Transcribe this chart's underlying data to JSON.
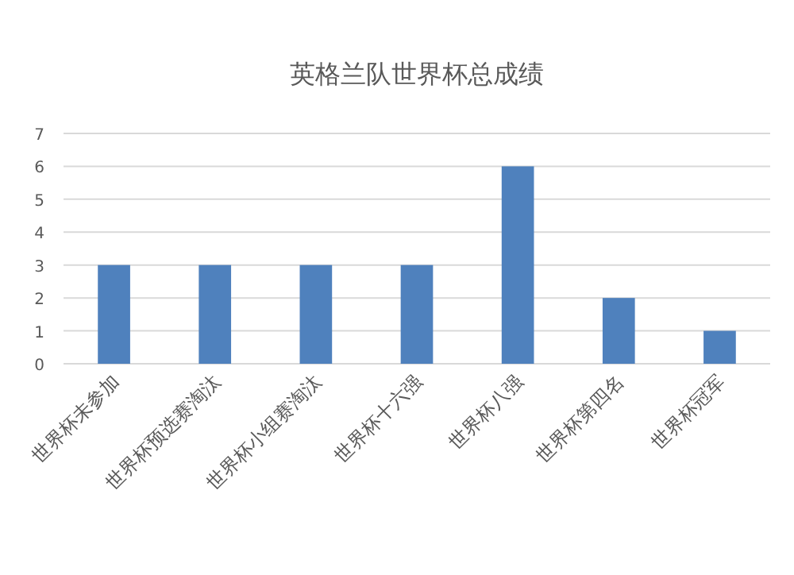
{
  "chart_data": {
    "type": "bar",
    "title": "英格兰队世界杯总成绩",
    "categories": [
      "世界杯未参加",
      "世界杯预选赛淘汰",
      "世界杯小组赛淘汰",
      "世界杯十六强",
      "世界杯八强",
      "世界杯第四名",
      "世界杯冠军"
    ],
    "values": [
      3,
      3,
      3,
      3,
      6,
      2,
      1
    ],
    "color": "#4f81bd",
    "ylim": [
      0,
      7
    ],
    "yticks": [
      0,
      1,
      2,
      3,
      4,
      5,
      6,
      7
    ],
    "grid": "y"
  }
}
